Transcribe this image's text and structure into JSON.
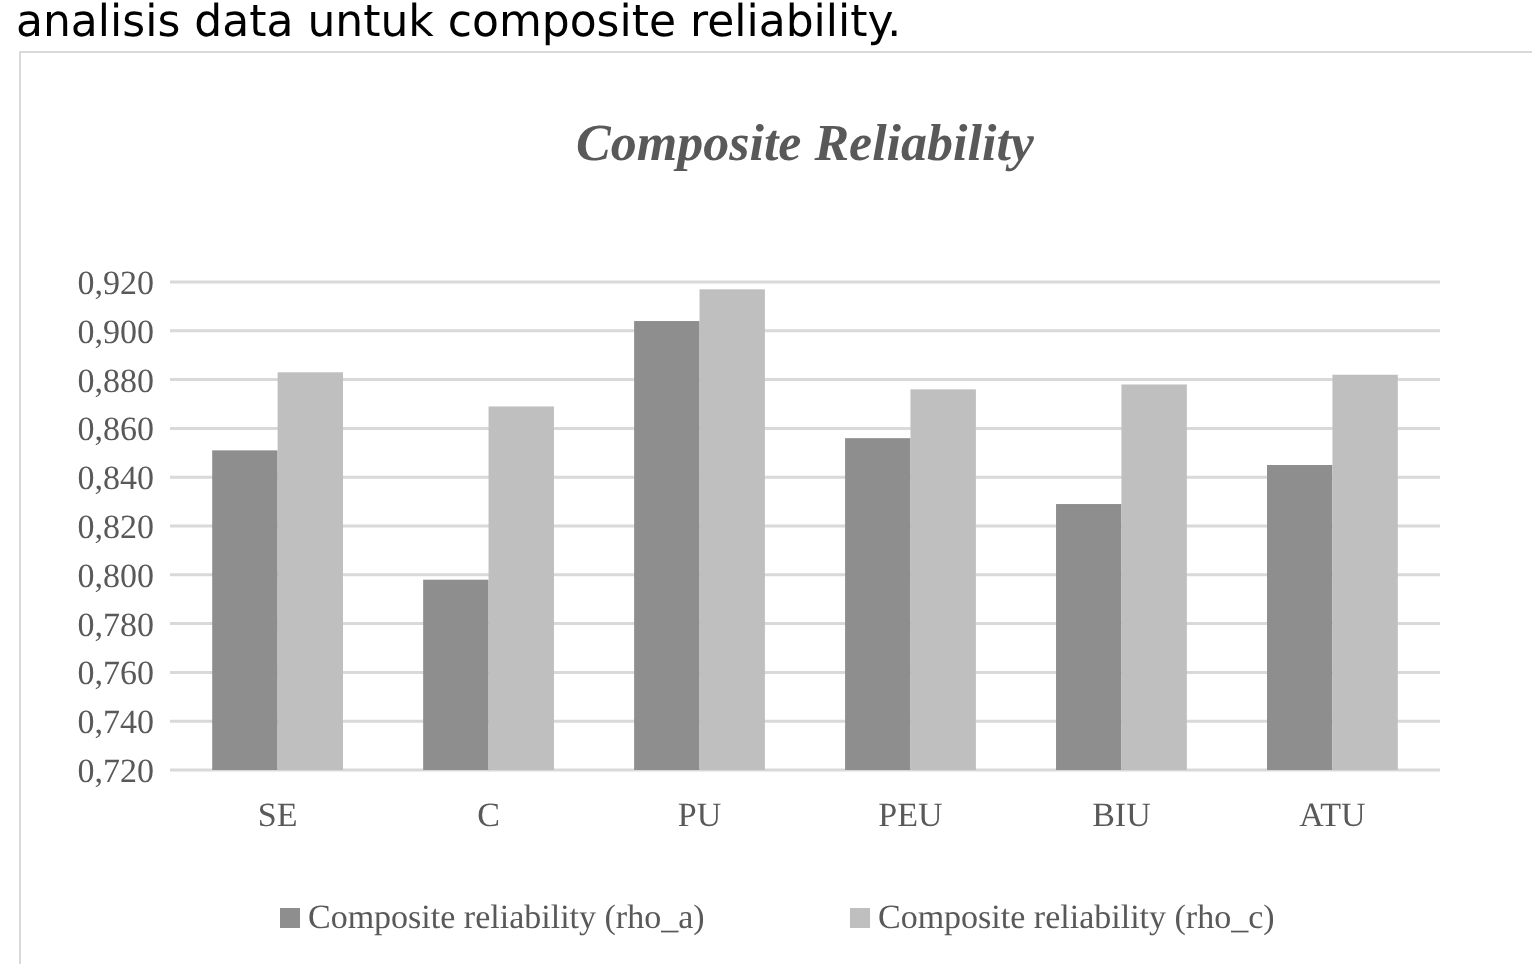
{
  "chart_data": {
    "type": "bar",
    "title": "Composite Reliability",
    "annotations": [
      "analisis data untuk composite reliability."
    ],
    "categories": [
      "SE",
      "C",
      "PU",
      "PEU",
      "BIU",
      "ATU"
    ],
    "series": [
      {
        "name": "Composite reliability (rho_a)",
        "color": "#8e8e8e",
        "values": [
          0.851,
          0.798,
          0.904,
          0.856,
          0.829,
          0.845
        ]
      },
      {
        "name": "Composite reliability (rho_c)",
        "color": "#bfbfbf",
        "values": [
          0.883,
          0.869,
          0.917,
          0.876,
          0.878,
          0.882
        ]
      }
    ],
    "ylim": [
      0.72,
      0.92
    ],
    "yticks": [
      {
        "value": 0.72,
        "label": "0,720"
      },
      {
        "value": 0.74,
        "label": "0,740"
      },
      {
        "value": 0.76,
        "label": "0,760"
      },
      {
        "value": 0.78,
        "label": "0,780"
      },
      {
        "value": 0.8,
        "label": "0,800"
      },
      {
        "value": 0.82,
        "label": "0,820"
      },
      {
        "value": 0.84,
        "label": "0,840"
      },
      {
        "value": 0.86,
        "label": "0,860"
      },
      {
        "value": 0.88,
        "label": "0,880"
      },
      {
        "value": 0.9,
        "label": "0,900"
      },
      {
        "value": 0.92,
        "label": "0,920"
      }
    ],
    "grid": "y",
    "legend": "bottom"
  }
}
